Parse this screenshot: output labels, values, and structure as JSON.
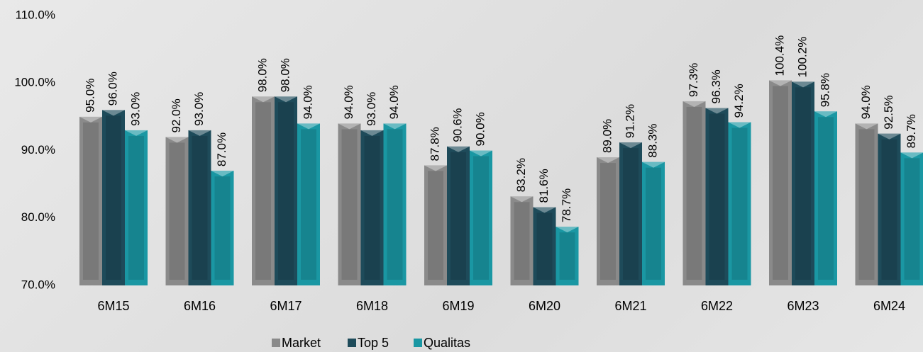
{
  "chart_data": {
    "type": "bar",
    "categories": [
      "6M15",
      "6M16",
      "6M17",
      "6M18",
      "6M19",
      "6M20",
      "6M21",
      "6M22",
      "6M23",
      "6M24"
    ],
    "series": [
      {
        "name": "Market",
        "color": "#8a8a8a",
        "values": [
          95.0,
          92.0,
          98.0,
          94.0,
          87.8,
          83.2,
          89.0,
          97.3,
          100.4,
          94.0
        ],
        "value_labels": [
          "95.0%",
          "92.0%",
          "98.0%",
          "94.0%",
          "87.8%",
          "83.2%",
          "89.0%",
          "97.3%",
          "100.4%",
          "94.0%"
        ]
      },
      {
        "name": "Top 5",
        "color": "#1e4b5a",
        "values": [
          96.0,
          93.0,
          98.0,
          93.0,
          90.6,
          81.6,
          91.2,
          96.3,
          100.2,
          92.5
        ],
        "value_labels": [
          "96.0%",
          "93.0%",
          "98.0%",
          "93.0%",
          "90.6%",
          "81.6%",
          "91.2%",
          "96.3%",
          "100.2%",
          "92.5%"
        ]
      },
      {
        "name": "Qualitas",
        "color": "#1a97a3",
        "values": [
          93.0,
          87.0,
          94.0,
          94.0,
          90.0,
          78.7,
          88.3,
          94.2,
          95.8,
          89.7
        ],
        "value_labels": [
          "93.0%",
          "87.0%",
          "94.0%",
          "94.0%",
          "90.0%",
          "78.7%",
          "88.3%",
          "94.2%",
          "95.8%",
          "89.7%"
        ]
      }
    ],
    "ylim": [
      70,
      110
    ],
    "yticks": [
      {
        "value": 70,
        "label": "70.0%"
      },
      {
        "value": 80,
        "label": "80.0%"
      },
      {
        "value": 90,
        "label": "90.0%"
      },
      {
        "value": 100,
        "label": "100.0%"
      },
      {
        "value": 110,
        "label": "110.0%"
      }
    ],
    "grid": false,
    "legend": "bottom"
  }
}
